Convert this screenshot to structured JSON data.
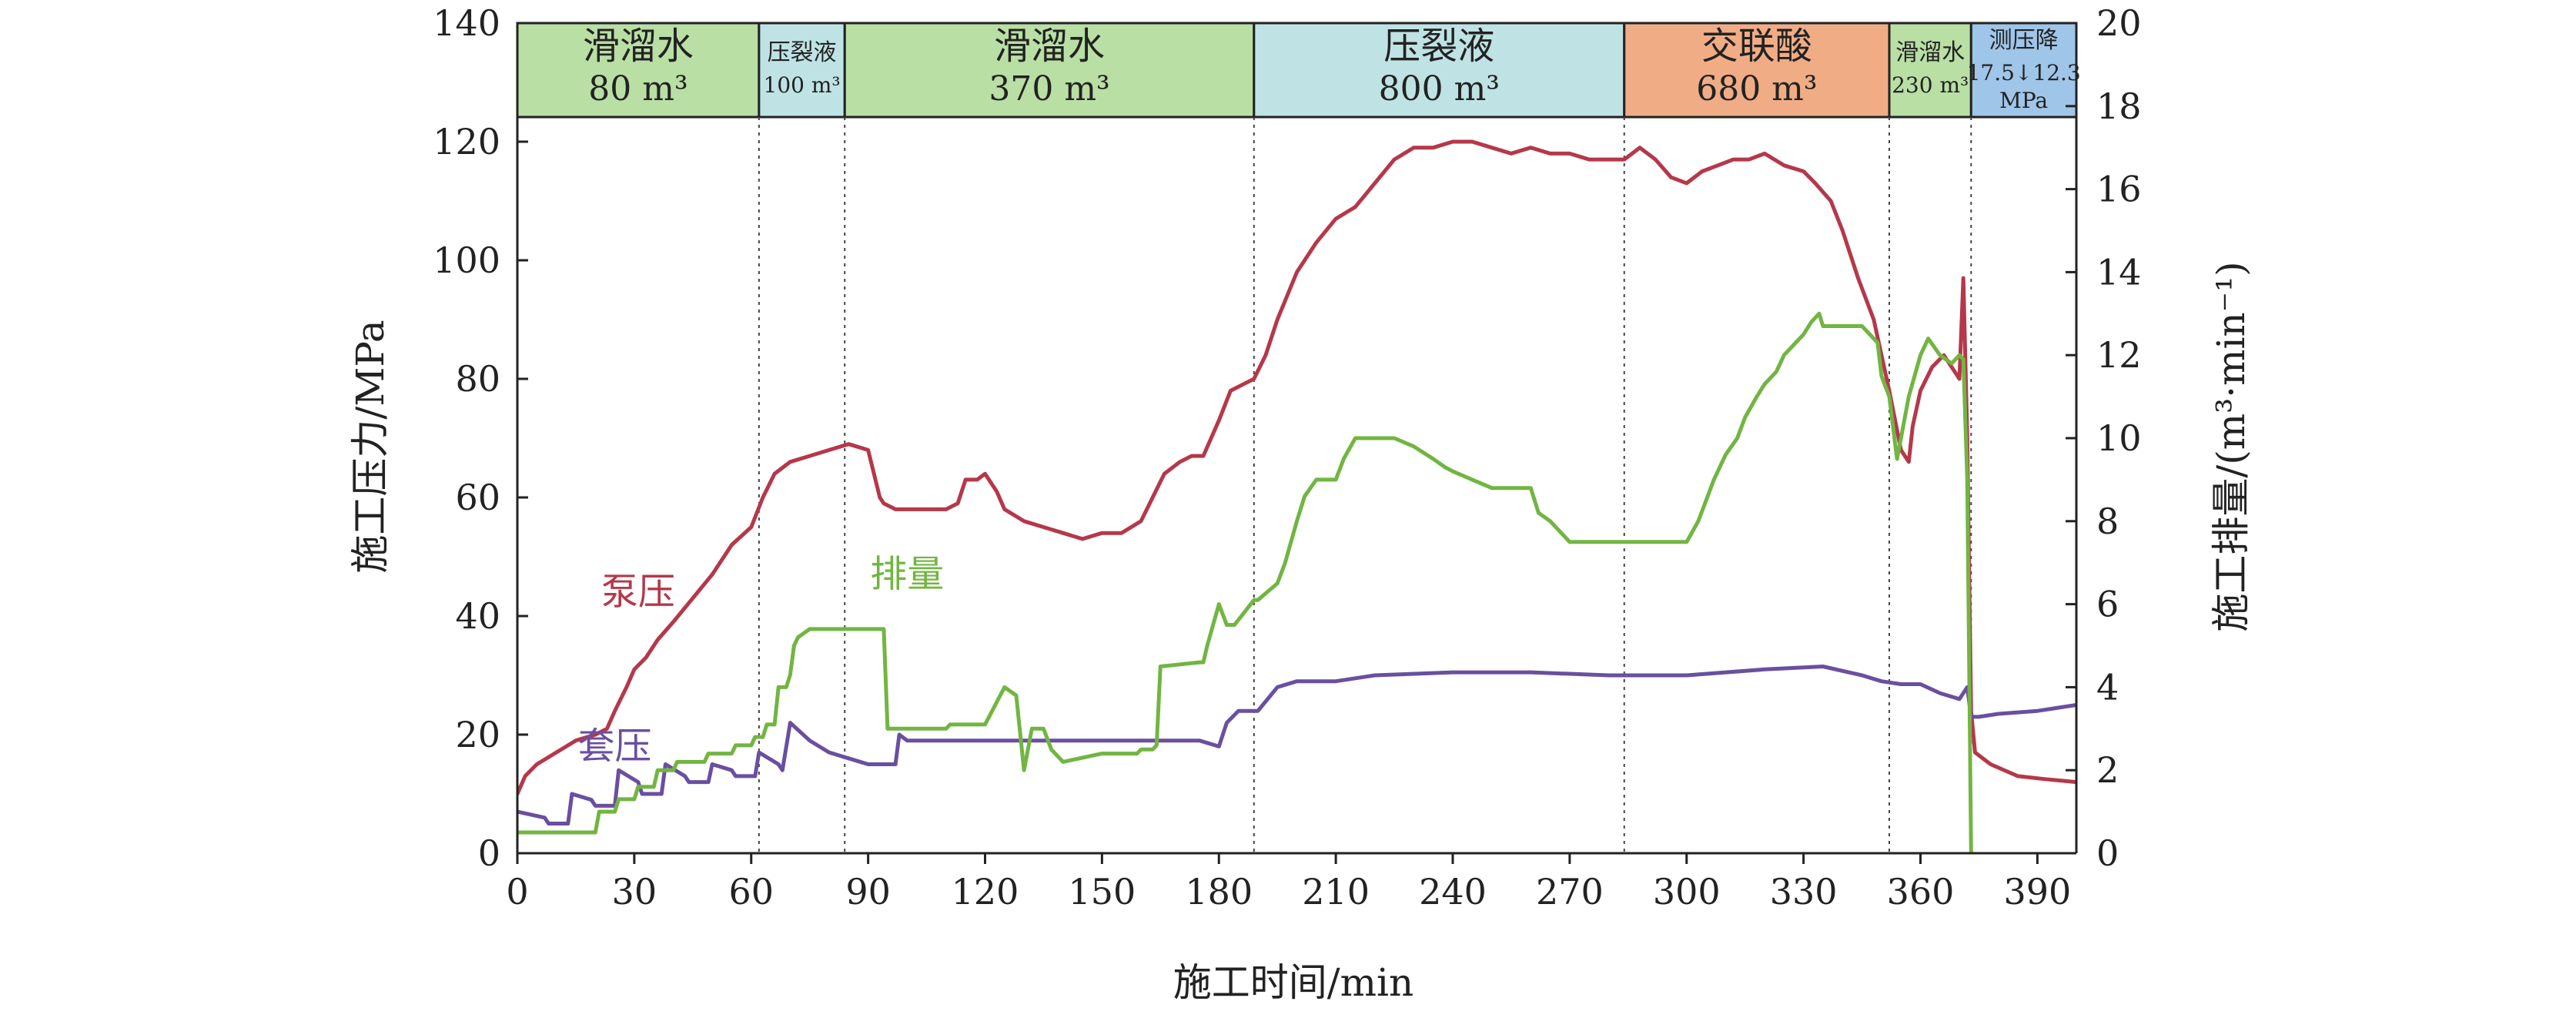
{
  "chart_data": {
    "type": "line",
    "title": "",
    "xlabel": "施工时间/min",
    "ylabel_left": "施工压力/MPa",
    "ylabel_right": "施工排量/(m³·min⁻¹)",
    "xlim": [
      0,
      400
    ],
    "ylim_left": [
      0,
      140
    ],
    "ylim_right": [
      0,
      20
    ],
    "x_ticks": [
      0,
      30,
      60,
      90,
      120,
      150,
      180,
      210,
      240,
      270,
      300,
      330,
      360,
      390
    ],
    "y_ticks_left": [
      0,
      20,
      40,
      60,
      80,
      100,
      120,
      140
    ],
    "y_ticks_right": [
      0,
      2,
      4,
      6,
      8,
      10,
      12,
      14,
      16,
      18,
      20
    ],
    "grid": false,
    "colors": {
      "pump": "#b5384a",
      "casing": "#6a4fa0",
      "rate": "#72b542",
      "stage_green": "#b9dfa5",
      "stage_cyan": "#bfe3e4",
      "stage_orange": "#f0ad85",
      "stage_blue": "#9fc5e8"
    },
    "stages": [
      {
        "name": "滑溜水",
        "volume": "80 m³",
        "start": 0,
        "end": 62,
        "color": "stage_green"
      },
      {
        "name": "压裂液",
        "volume": "100 m³",
        "start": 62,
        "end": 84,
        "color": "stage_cyan"
      },
      {
        "name": "滑溜水",
        "volume": "370 m³",
        "start": 84,
        "end": 189,
        "color": "stage_green"
      },
      {
        "name": "压裂液",
        "volume": "800 m³",
        "start": 189,
        "end": 284,
        "color": "stage_cyan"
      },
      {
        "name": "交联酸",
        "volume": "680 m³",
        "start": 284,
        "end": 352,
        "color": "stage_orange"
      },
      {
        "name": "滑溜水",
        "volume": "230 m³",
        "start": 352,
        "end": 373,
        "color": "stage_green"
      },
      {
        "name": "测压降",
        "volume": "17.5↓12.3",
        "unit": "MPa",
        "start": 373,
        "end": 400,
        "color": "stage_blue"
      }
    ],
    "annotations": [
      {
        "text": "泵压",
        "series": "pump",
        "x": 31,
        "y": 42
      },
      {
        "text": "排量",
        "series": "rate",
        "x": 100,
        "y": 45
      },
      {
        "text": "套压",
        "series": "casing",
        "x": 25,
        "y": 16
      }
    ],
    "series": [
      {
        "id": "pump",
        "axis": "left",
        "x": [
          0,
          2,
          5,
          10,
          15,
          20,
          23,
          25,
          28,
          30,
          33,
          36,
          40,
          45,
          50,
          55,
          60,
          63,
          66,
          70,
          75,
          80,
          85,
          90,
          93,
          94,
          97,
          100,
          105,
          110,
          113,
          115,
          118,
          120,
          123,
          125,
          130,
          135,
          140,
          145,
          150,
          155,
          160,
          163,
          166,
          170,
          173,
          176,
          180,
          183,
          186,
          189,
          192,
          195,
          200,
          205,
          210,
          215,
          220,
          225,
          230,
          235,
          240,
          245,
          250,
          255,
          260,
          265,
          270,
          275,
          280,
          284,
          288,
          292,
          296,
          300,
          304,
          308,
          312,
          316,
          320,
          325,
          330,
          333,
          337,
          340,
          344,
          348,
          352,
          355,
          357,
          358,
          360,
          363,
          366,
          368,
          370,
          371,
          372,
          373,
          374,
          378,
          385,
          392,
          400
        ],
        "y": [
          10,
          13,
          15,
          17,
          19,
          20,
          21,
          24,
          28,
          31,
          33,
          36,
          39,
          43,
          47,
          52,
          55,
          60,
          64,
          66,
          67,
          68,
          69,
          68,
          60,
          59,
          58,
          58,
          58,
          58,
          59,
          63,
          63,
          64,
          61,
          58,
          56,
          55,
          54,
          53,
          54,
          54,
          56,
          60,
          64,
          66,
          67,
          67,
          73,
          78,
          79,
          80,
          84,
          90,
          98,
          103,
          107,
          109,
          113,
          117,
          119,
          119,
          120,
          120,
          119,
          118,
          119,
          118,
          118,
          117,
          117,
          117,
          119,
          117,
          114,
          113,
          115,
          116,
          117,
          117,
          118,
          116,
          115,
          113,
          110,
          105,
          97,
          90,
          78,
          68,
          66,
          72,
          78,
          82,
          84,
          82,
          80,
          97,
          70,
          24,
          17,
          15,
          13,
          12.5,
          12
        ]
      },
      {
        "id": "casing",
        "axis": "left",
        "x": [
          0,
          7,
          8,
          13,
          14,
          19,
          20,
          25,
          26,
          31,
          32,
          37,
          38,
          43,
          44,
          49,
          50,
          55,
          56,
          61,
          62,
          67,
          68,
          70,
          75,
          80,
          85,
          90,
          95,
          97,
          98,
          100,
          110,
          120,
          130,
          140,
          150,
          160,
          170,
          175,
          180,
          182,
          185,
          190,
          195,
          200,
          210,
          220,
          240,
          260,
          280,
          300,
          320,
          335,
          345,
          350,
          355,
          360,
          365,
          370,
          372,
          373,
          375,
          380,
          390,
          400
        ],
        "y": [
          7,
          6,
          5,
          5,
          10,
          9,
          8,
          8,
          14,
          12,
          10,
          10,
          15,
          13,
          12,
          12,
          15,
          14,
          13,
          13,
          17,
          15,
          14,
          22,
          19,
          17,
          16,
          15,
          15,
          15,
          20,
          19,
          19,
          19,
          19,
          19,
          19,
          19,
          19,
          19,
          18,
          22,
          24,
          24,
          28,
          29,
          29,
          30,
          30.5,
          30.5,
          30,
          30,
          31,
          31.5,
          30,
          29,
          28.5,
          28.5,
          27,
          26,
          28,
          23,
          23,
          23.5,
          24,
          25
        ]
      },
      {
        "id": "rate",
        "axis": "right",
        "x": [
          0,
          10,
          20,
          21,
          25,
          26,
          30,
          31,
          35,
          36,
          40,
          41,
          48,
          49,
          55,
          56,
          60,
          61,
          63,
          64,
          66,
          67,
          69,
          70,
          71,
          72,
          75,
          84,
          85,
          94,
          95,
          96,
          100,
          110,
          111,
          120,
          125,
          128,
          130,
          132,
          135,
          137,
          139,
          140,
          150,
          151,
          159,
          160,
          163,
          164,
          165,
          175,
          176,
          177,
          180,
          182,
          184,
          189,
          190,
          195,
          197,
          200,
          202,
          205,
          207,
          210,
          212,
          215,
          218,
          220,
          225,
          230,
          235,
          238,
          240,
          245,
          250,
          255,
          260,
          262,
          265,
          270,
          275,
          280,
          285,
          290,
          295,
          300,
          303,
          305,
          307,
          310,
          313,
          315,
          318,
          320,
          323,
          325,
          328,
          330,
          332,
          334,
          335,
          340,
          345,
          349,
          350,
          352,
          354,
          355,
          357,
          360,
          362,
          365,
          368,
          370,
          371,
          372,
          373
        ],
        "y": [
          0.5,
          0.5,
          0.5,
          1,
          1,
          1.3,
          1.3,
          1.6,
          1.6,
          2,
          2,
          2.2,
          2.2,
          2.4,
          2.4,
          2.6,
          2.6,
          2.8,
          2.8,
          3.1,
          3.1,
          4,
          4,
          4.3,
          5,
          5.2,
          5.4,
          5.4,
          5.4,
          5.4,
          3,
          3,
          3,
          3,
          3.1,
          3.1,
          4,
          3.8,
          2,
          3,
          3,
          2.5,
          2.3,
          2.2,
          2.4,
          2.4,
          2.4,
          2.5,
          2.5,
          2.6,
          4.5,
          4.6,
          4.6,
          5,
          6,
          5.5,
          5.5,
          6.1,
          6.1,
          6.5,
          7,
          8,
          8.6,
          9,
          9,
          9,
          9.5,
          10,
          10,
          10,
          10,
          9.8,
          9.5,
          9.3,
          9.2,
          9.0,
          8.8,
          8.8,
          8.8,
          8.2,
          8.0,
          7.5,
          7.5,
          7.5,
          7.5,
          7.5,
          7.5,
          7.5,
          8.0,
          8.5,
          9.0,
          9.6,
          10.0,
          10.5,
          11.0,
          11.3,
          11.6,
          12.0,
          12.3,
          12.5,
          12.8,
          13.0,
          12.7,
          12.7,
          12.7,
          12.3,
          11.5,
          11.0,
          9.5,
          10.0,
          11.0,
          12.0,
          12.4,
          12.0,
          11.8,
          12.0,
          11.9,
          9.0,
          0
        ]
      }
    ]
  }
}
